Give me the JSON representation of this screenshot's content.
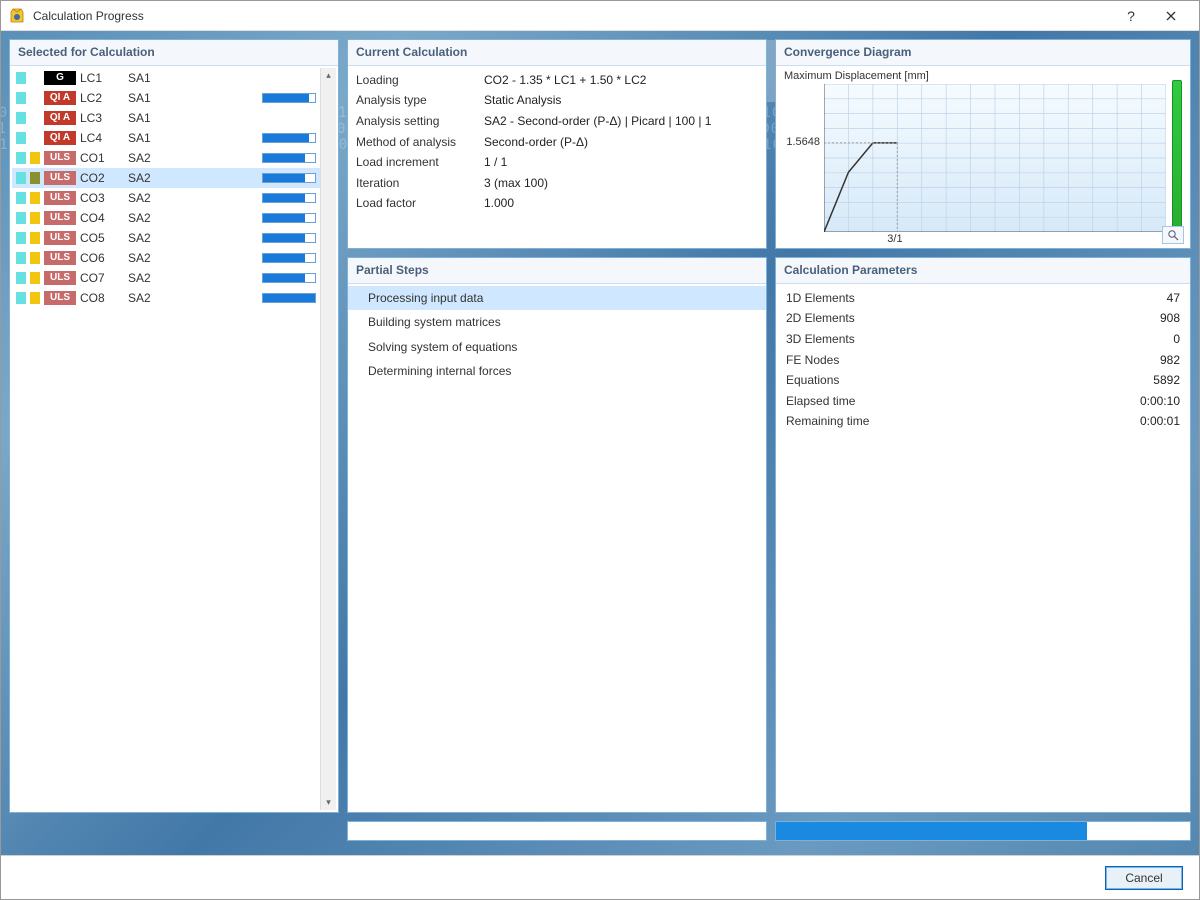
{
  "window": {
    "title": "Calculation Progress",
    "help_tooltip": "?",
    "close_tooltip": "×"
  },
  "bg_watermark": {
    "a": "RFEM",
    "b": "SOLVER"
  },
  "panels": {
    "selected_header": "Selected for Calculation",
    "current_header": "Current Calculation",
    "steps_header": "Partial Steps",
    "convergence_header": "Convergence Diagram",
    "params_header": "Calculation Parameters"
  },
  "selected": {
    "items": [
      {
        "swatch1": "#66e0e0",
        "swatch2_shown": false,
        "badge_text": "G",
        "badge_bg": "#000000",
        "name": "LC1",
        "sa": "SA1",
        "progress_shown": false,
        "progress": 0,
        "selected": false
      },
      {
        "swatch1": "#66e0e0",
        "swatch2_shown": false,
        "badge_text": "QI A",
        "badge_bg": "#c0392b",
        "name": "LC2",
        "sa": "SA1",
        "progress_shown": true,
        "progress": 0.88,
        "selected": false
      },
      {
        "swatch1": "#66e0e0",
        "swatch2_shown": false,
        "badge_text": "QI A",
        "badge_bg": "#c0392b",
        "name": "LC3",
        "sa": "SA1",
        "progress_shown": false,
        "progress": 0,
        "selected": false
      },
      {
        "swatch1": "#66e0e0",
        "swatch2_shown": false,
        "badge_text": "QI A",
        "badge_bg": "#c0392b",
        "name": "LC4",
        "sa": "SA1",
        "progress_shown": true,
        "progress": 0.88,
        "selected": false
      },
      {
        "swatch1": "#66e0e0",
        "swatch2_shown": true,
        "swatch2": "#f2c511",
        "badge_text": "ULS",
        "badge_bg": "#c76a6a",
        "name": "CO1",
        "sa": "SA2",
        "progress_shown": true,
        "progress": 0.8,
        "selected": false
      },
      {
        "swatch1": "#66e0e0",
        "swatch2_shown": true,
        "swatch2": "#8a8f30",
        "badge_text": "ULS",
        "badge_bg": "#c76a6a",
        "name": "CO2",
        "sa": "SA2",
        "progress_shown": true,
        "progress": 0.8,
        "selected": true
      },
      {
        "swatch1": "#66e0e0",
        "swatch2_shown": true,
        "swatch2": "#f2c511",
        "badge_text": "ULS",
        "badge_bg": "#c76a6a",
        "name": "CO3",
        "sa": "SA2",
        "progress_shown": true,
        "progress": 0.8,
        "selected": false
      },
      {
        "swatch1": "#66e0e0",
        "swatch2_shown": true,
        "swatch2": "#f2c511",
        "badge_text": "ULS",
        "badge_bg": "#c76a6a",
        "name": "CO4",
        "sa": "SA2",
        "progress_shown": true,
        "progress": 0.8,
        "selected": false
      },
      {
        "swatch1": "#66e0e0",
        "swatch2_shown": true,
        "swatch2": "#f2c511",
        "badge_text": "ULS",
        "badge_bg": "#c76a6a",
        "name": "CO5",
        "sa": "SA2",
        "progress_shown": true,
        "progress": 0.8,
        "selected": false
      },
      {
        "swatch1": "#66e0e0",
        "swatch2_shown": true,
        "swatch2": "#f2c511",
        "badge_text": "ULS",
        "badge_bg": "#c76a6a",
        "name": "CO6",
        "sa": "SA2",
        "progress_shown": true,
        "progress": 0.8,
        "selected": false
      },
      {
        "swatch1": "#66e0e0",
        "swatch2_shown": true,
        "swatch2": "#f2c511",
        "badge_text": "ULS",
        "badge_bg": "#c76a6a",
        "name": "CO7",
        "sa": "SA2",
        "progress_shown": true,
        "progress": 0.8,
        "selected": false
      },
      {
        "swatch1": "#66e0e0",
        "swatch2_shown": true,
        "swatch2": "#f2c511",
        "badge_text": "ULS",
        "badge_bg": "#c76a6a",
        "name": "CO8",
        "sa": "SA2",
        "progress_shown": true,
        "progress": 1.0,
        "selected": false
      }
    ]
  },
  "current": {
    "rows": [
      {
        "k": "Loading",
        "v": "CO2 - 1.35 * LC1 + 1.50 * LC2"
      },
      {
        "k": "Analysis type",
        "v": "Static Analysis"
      },
      {
        "k": "Analysis setting",
        "v": "SA2 - Second-order (P-Δ) | Picard | 100 | 1"
      },
      {
        "k": "Method of analysis",
        "v": "Second-order (P-Δ)"
      },
      {
        "k": "Load increment",
        "v": "1 / 1"
      },
      {
        "k": "Iteration",
        "v": "3 (max 100)"
      },
      {
        "k": "Load factor",
        "v": "1.000"
      }
    ]
  },
  "steps": {
    "items": [
      {
        "label": "Processing input data",
        "active": true
      },
      {
        "label": "Building system matrices",
        "active": false
      },
      {
        "label": "Solving system of equations",
        "active": false
      },
      {
        "label": "Determining internal forces",
        "active": false
      }
    ]
  },
  "convergence": {
    "subtitle": "Maximum Displacement [mm]",
    "type": "line",
    "y_tick_label": "1.5648",
    "x_tick_label": "3/1",
    "xlim": [
      0,
      14
    ],
    "ylim": [
      0,
      2.6
    ],
    "y_tick_value": 1.5648,
    "x_tick_value": 3,
    "grid_color": "#bcd3ea",
    "plot_bg_top": "#f6fbff",
    "plot_bg_bottom": "#d6e9f8",
    "axis_color": "#556",
    "line_color": "#333333",
    "guide_color": "#999999",
    "line_width": 1.5,
    "gauge_start": "#2ecc40",
    "gauge_end": "#27ae30",
    "points": [
      {
        "x": 0,
        "y": 0
      },
      {
        "x": 1,
        "y": 1.05
      },
      {
        "x": 2,
        "y": 1.5648
      },
      {
        "x": 3,
        "y": 1.5648
      }
    ],
    "grid_x_step": 1,
    "grid_y_step": 0.26
  },
  "params": {
    "rows": [
      {
        "k": "1D Elements",
        "v": "47"
      },
      {
        "k": "2D Elements",
        "v": "908"
      },
      {
        "k": "3D Elements",
        "v": "0"
      },
      {
        "k": "FE Nodes",
        "v": "982"
      },
      {
        "k": "Equations",
        "v": "5892"
      },
      {
        "k": "Elapsed time",
        "v": "0:00:10"
      },
      {
        "k": "Remaining time",
        "v": "0:00:01"
      }
    ]
  },
  "bottom_bars": {
    "bar1_progress": 0.0,
    "bar2_progress": 0.75,
    "fill_color": "#1a8ae0"
  },
  "footer": {
    "cancel_label": "Cancel"
  }
}
